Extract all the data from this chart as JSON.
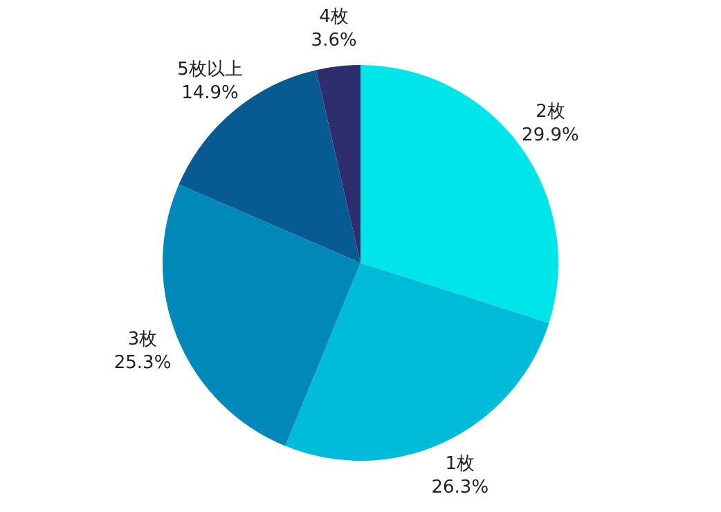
{
  "chart_data": {
    "type": "pie",
    "categories": [
      "2枚",
      "1枚",
      "3枚",
      "5枚以上",
      "4枚"
    ],
    "values": [
      29.9,
      26.3,
      25.3,
      14.9,
      3.6
    ],
    "value_labels": [
      "29.9%",
      "26.3%",
      "25.3%",
      "14.9%",
      "3.6%"
    ],
    "colors": [
      "#00e5ea",
      "#00bcd8",
      "#0088b8",
      "#085a92",
      "#2e2e6e"
    ],
    "legend": false
  }
}
